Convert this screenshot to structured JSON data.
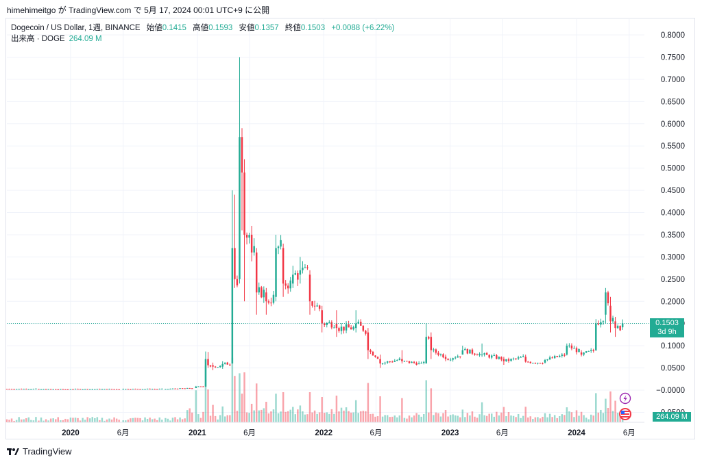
{
  "attribution": "himehimeitgo が TradingView.com で 5月 17, 2024 00:01 UTC+9 に公開",
  "legend": {
    "symbol": "Dogecoin / US Dollar, 1週, BINANCE",
    "open_label": "始値",
    "open": "0.1415",
    "high_label": "高値",
    "high": "0.1593",
    "low_label": "安値",
    "low": "0.1357",
    "close_label": "終値",
    "close": "0.1503",
    "change": "+0.0088 (+6.22%)"
  },
  "volume_legend": {
    "label": "出来高 · DOGE",
    "value": "264.09 M"
  },
  "price_tag": {
    "price": "0.1503",
    "countdown": "3d 9h"
  },
  "volume_tag": "264.09 M",
  "brand": "TradingView",
  "colors": {
    "up": "#22ab94",
    "down": "#f23645",
    "grid": "#f0f3fa",
    "text": "#131722"
  },
  "icons": [
    "lightning-icon",
    "us-flag-icon"
  ],
  "chart_data": {
    "type": "candlestick",
    "interval": "1W",
    "y_axis": {
      "position": "right",
      "ylim": [
        -0.03,
        0.81
      ],
      "ticks": [
        "0.8000",
        "0.7500",
        "0.7000",
        "0.6500",
        "0.6000",
        "0.5500",
        "0.5000",
        "0.4500",
        "0.4000",
        "0.3500",
        "0.3000",
        "0.2500",
        "0.2000",
        "0.1500",
        "0.1000",
        "0.0500",
        "−0.0000",
        "−0.0500"
      ],
      "tick_values": [
        0.8,
        0.75,
        0.7,
        0.65,
        0.6,
        0.55,
        0.5,
        0.45,
        0.4,
        0.35,
        0.3,
        0.25,
        0.2,
        0.15,
        0.1,
        0.05,
        0.0,
        -0.05
      ]
    },
    "x_axis": {
      "ticks": [
        "2020",
        "6月",
        "2021",
        "6月",
        "2022",
        "6月",
        "2023",
        "6月",
        "2024",
        "6月"
      ],
      "tick_dates": [
        "2020-01-01",
        "2020-06-01",
        "2021-01-01",
        "2021-06-01",
        "2022-01-01",
        "2022-06-01",
        "2023-01-01",
        "2023-06-01",
        "2024-01-01",
        "2024-06-01"
      ],
      "xlim": [
        "2019-07-01",
        "2024-07-15"
      ]
    },
    "last_price": 0.1503,
    "candles": [
      [
        "2019-07-01",
        0.003,
        0.0031,
        0.0028,
        0.0029
      ],
      [
        "2019-10-01",
        0.0029,
        0.003,
        0.0022,
        0.0023
      ],
      [
        "2020-01-01",
        0.002,
        0.0025,
        0.0019,
        0.0024
      ],
      [
        "2020-06-01",
        0.0024,
        0.0035,
        0.0023,
        0.0027
      ],
      [
        "2020-10-01",
        0.0027,
        0.003,
        0.0025,
        0.0028
      ],
      [
        "2020-12-28",
        0.0046,
        0.0095,
        0.0045,
        0.008
      ],
      [
        "2021-01-25",
        0.008,
        0.087,
        0.0075,
        0.07
      ],
      [
        "2021-02-01",
        0.07,
        0.086,
        0.05,
        0.056
      ],
      [
        "2021-02-15",
        0.056,
        0.062,
        0.045,
        0.053
      ],
      [
        "2021-03-15",
        0.053,
        0.065,
        0.048,
        0.059
      ],
      [
        "2021-04-12",
        0.06,
        0.45,
        0.06,
        0.32
      ],
      [
        "2021-04-19",
        0.32,
        0.44,
        0.23,
        0.25
      ],
      [
        "2021-05-03",
        0.25,
        0.75,
        0.24,
        0.57
      ],
      [
        "2021-05-10",
        0.57,
        0.59,
        0.36,
        0.49
      ],
      [
        "2021-05-17",
        0.49,
        0.52,
        0.2,
        0.35
      ],
      [
        "2021-06-07",
        0.35,
        0.37,
        0.29,
        0.31
      ],
      [
        "2021-06-21",
        0.31,
        0.32,
        0.17,
        0.22
      ],
      [
        "2021-07-19",
        0.22,
        0.23,
        0.17,
        0.2
      ],
      [
        "2021-08-16",
        0.21,
        0.35,
        0.2,
        0.32
      ],
      [
        "2021-09-06",
        0.32,
        0.33,
        0.21,
        0.24
      ],
      [
        "2021-10-04",
        0.24,
        0.28,
        0.23,
        0.26
      ],
      [
        "2021-10-25",
        0.26,
        0.3,
        0.24,
        0.27
      ],
      [
        "2021-11-22",
        0.26,
        0.27,
        0.17,
        0.2
      ],
      [
        "2021-12-27",
        0.18,
        0.19,
        0.13,
        0.15
      ],
      [
        "2022-02-07",
        0.15,
        0.18,
        0.12,
        0.14
      ],
      [
        "2022-04-04",
        0.14,
        0.18,
        0.13,
        0.15
      ],
      [
        "2022-05-09",
        0.13,
        0.14,
        0.07,
        0.09
      ],
      [
        "2022-06-13",
        0.07,
        0.08,
        0.05,
        0.06
      ],
      [
        "2022-08-15",
        0.07,
        0.09,
        0.06,
        0.065
      ],
      [
        "2022-10-03",
        0.06,
        0.065,
        0.058,
        0.06
      ],
      [
        "2022-10-24",
        0.06,
        0.15,
        0.06,
        0.12
      ],
      [
        "2022-11-07",
        0.12,
        0.13,
        0.07,
        0.09
      ],
      [
        "2022-12-19",
        0.075,
        0.08,
        0.065,
        0.07
      ],
      [
        "2023-02-06",
        0.08,
        0.1,
        0.08,
        0.09
      ],
      [
        "2023-04-03",
        0.08,
        0.105,
        0.075,
        0.08
      ],
      [
        "2023-06-05",
        0.07,
        0.075,
        0.057,
        0.065
      ],
      [
        "2023-08-07",
        0.075,
        0.08,
        0.062,
        0.064
      ],
      [
        "2023-10-02",
        0.062,
        0.07,
        0.06,
        0.068
      ],
      [
        "2023-12-04",
        0.08,
        0.105,
        0.078,
        0.1
      ],
      [
        "2024-01-15",
        0.085,
        0.09,
        0.076,
        0.08
      ],
      [
        "2024-02-26",
        0.09,
        0.16,
        0.088,
        0.15
      ],
      [
        "2024-03-25",
        0.17,
        0.23,
        0.15,
        0.22
      ],
      [
        "2024-04-08",
        0.19,
        0.21,
        0.13,
        0.155
      ],
      [
        "2024-04-22",
        0.155,
        0.165,
        0.12,
        0.14
      ],
      [
        "2024-05-13",
        0.1415,
        0.1593,
        0.1357,
        0.1503
      ]
    ],
    "volume": {
      "unit": "M DOGE",
      "last": 264.09
    }
  }
}
